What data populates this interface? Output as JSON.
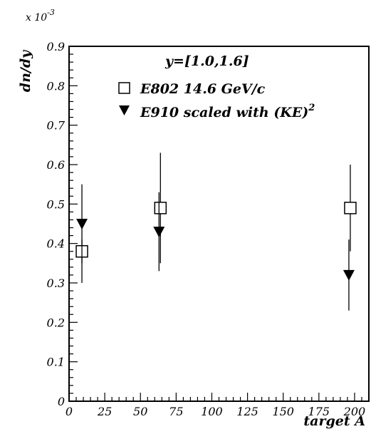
{
  "chart_data": {
    "type": "scatter",
    "annotation": "y=[1.0,1.6]",
    "xlabel": "target A",
    "ylabel": "dn/dy",
    "y_scale_prefix": "x 10",
    "y_scale_exponent": "-3",
    "xlim": [
      0,
      210
    ],
    "ylim": [
      0,
      0.9
    ],
    "x_ticks": [
      0,
      25,
      50,
      75,
      100,
      125,
      150,
      175,
      200
    ],
    "x_tick_labels": [
      "0",
      "25",
      "50",
      "75",
      "100",
      "125",
      "150",
      "175",
      "200"
    ],
    "y_ticks": [
      0,
      0.1,
      0.2,
      0.3,
      0.4,
      0.5,
      0.6,
      0.7,
      0.8,
      0.9
    ],
    "y_tick_labels": [
      "0",
      "0.1",
      "0.2",
      "0.3",
      "0.4",
      "0.5",
      "0.6",
      "0.7",
      "0.8",
      "0.9"
    ],
    "legend_position": "top-right",
    "grid": false,
    "series": [
      {
        "name": "E802 14.6 GeV/c",
        "marker": "open-square",
        "points": [
          {
            "x": 9,
            "y": 0.38,
            "ylow": 0.35,
            "yhigh": 0.41
          },
          {
            "x": 64,
            "y": 0.49,
            "ylow": 0.35,
            "yhigh": 0.63
          },
          {
            "x": 197,
            "y": 0.49,
            "ylow": 0.38,
            "yhigh": 0.6
          }
        ]
      },
      {
        "name_prefix": "E910 scaled with (KE)",
        "name_superscript": "2",
        "marker": "filled-down-triangle",
        "points": [
          {
            "x": 9,
            "y": 0.45,
            "ylow": 0.3,
            "yhigh": 0.55
          },
          {
            "x": 63,
            "y": 0.43,
            "ylow": 0.33,
            "yhigh": 0.53
          },
          {
            "x": 196,
            "y": 0.32,
            "ylow": 0.23,
            "yhigh": 0.41
          }
        ]
      }
    ]
  }
}
